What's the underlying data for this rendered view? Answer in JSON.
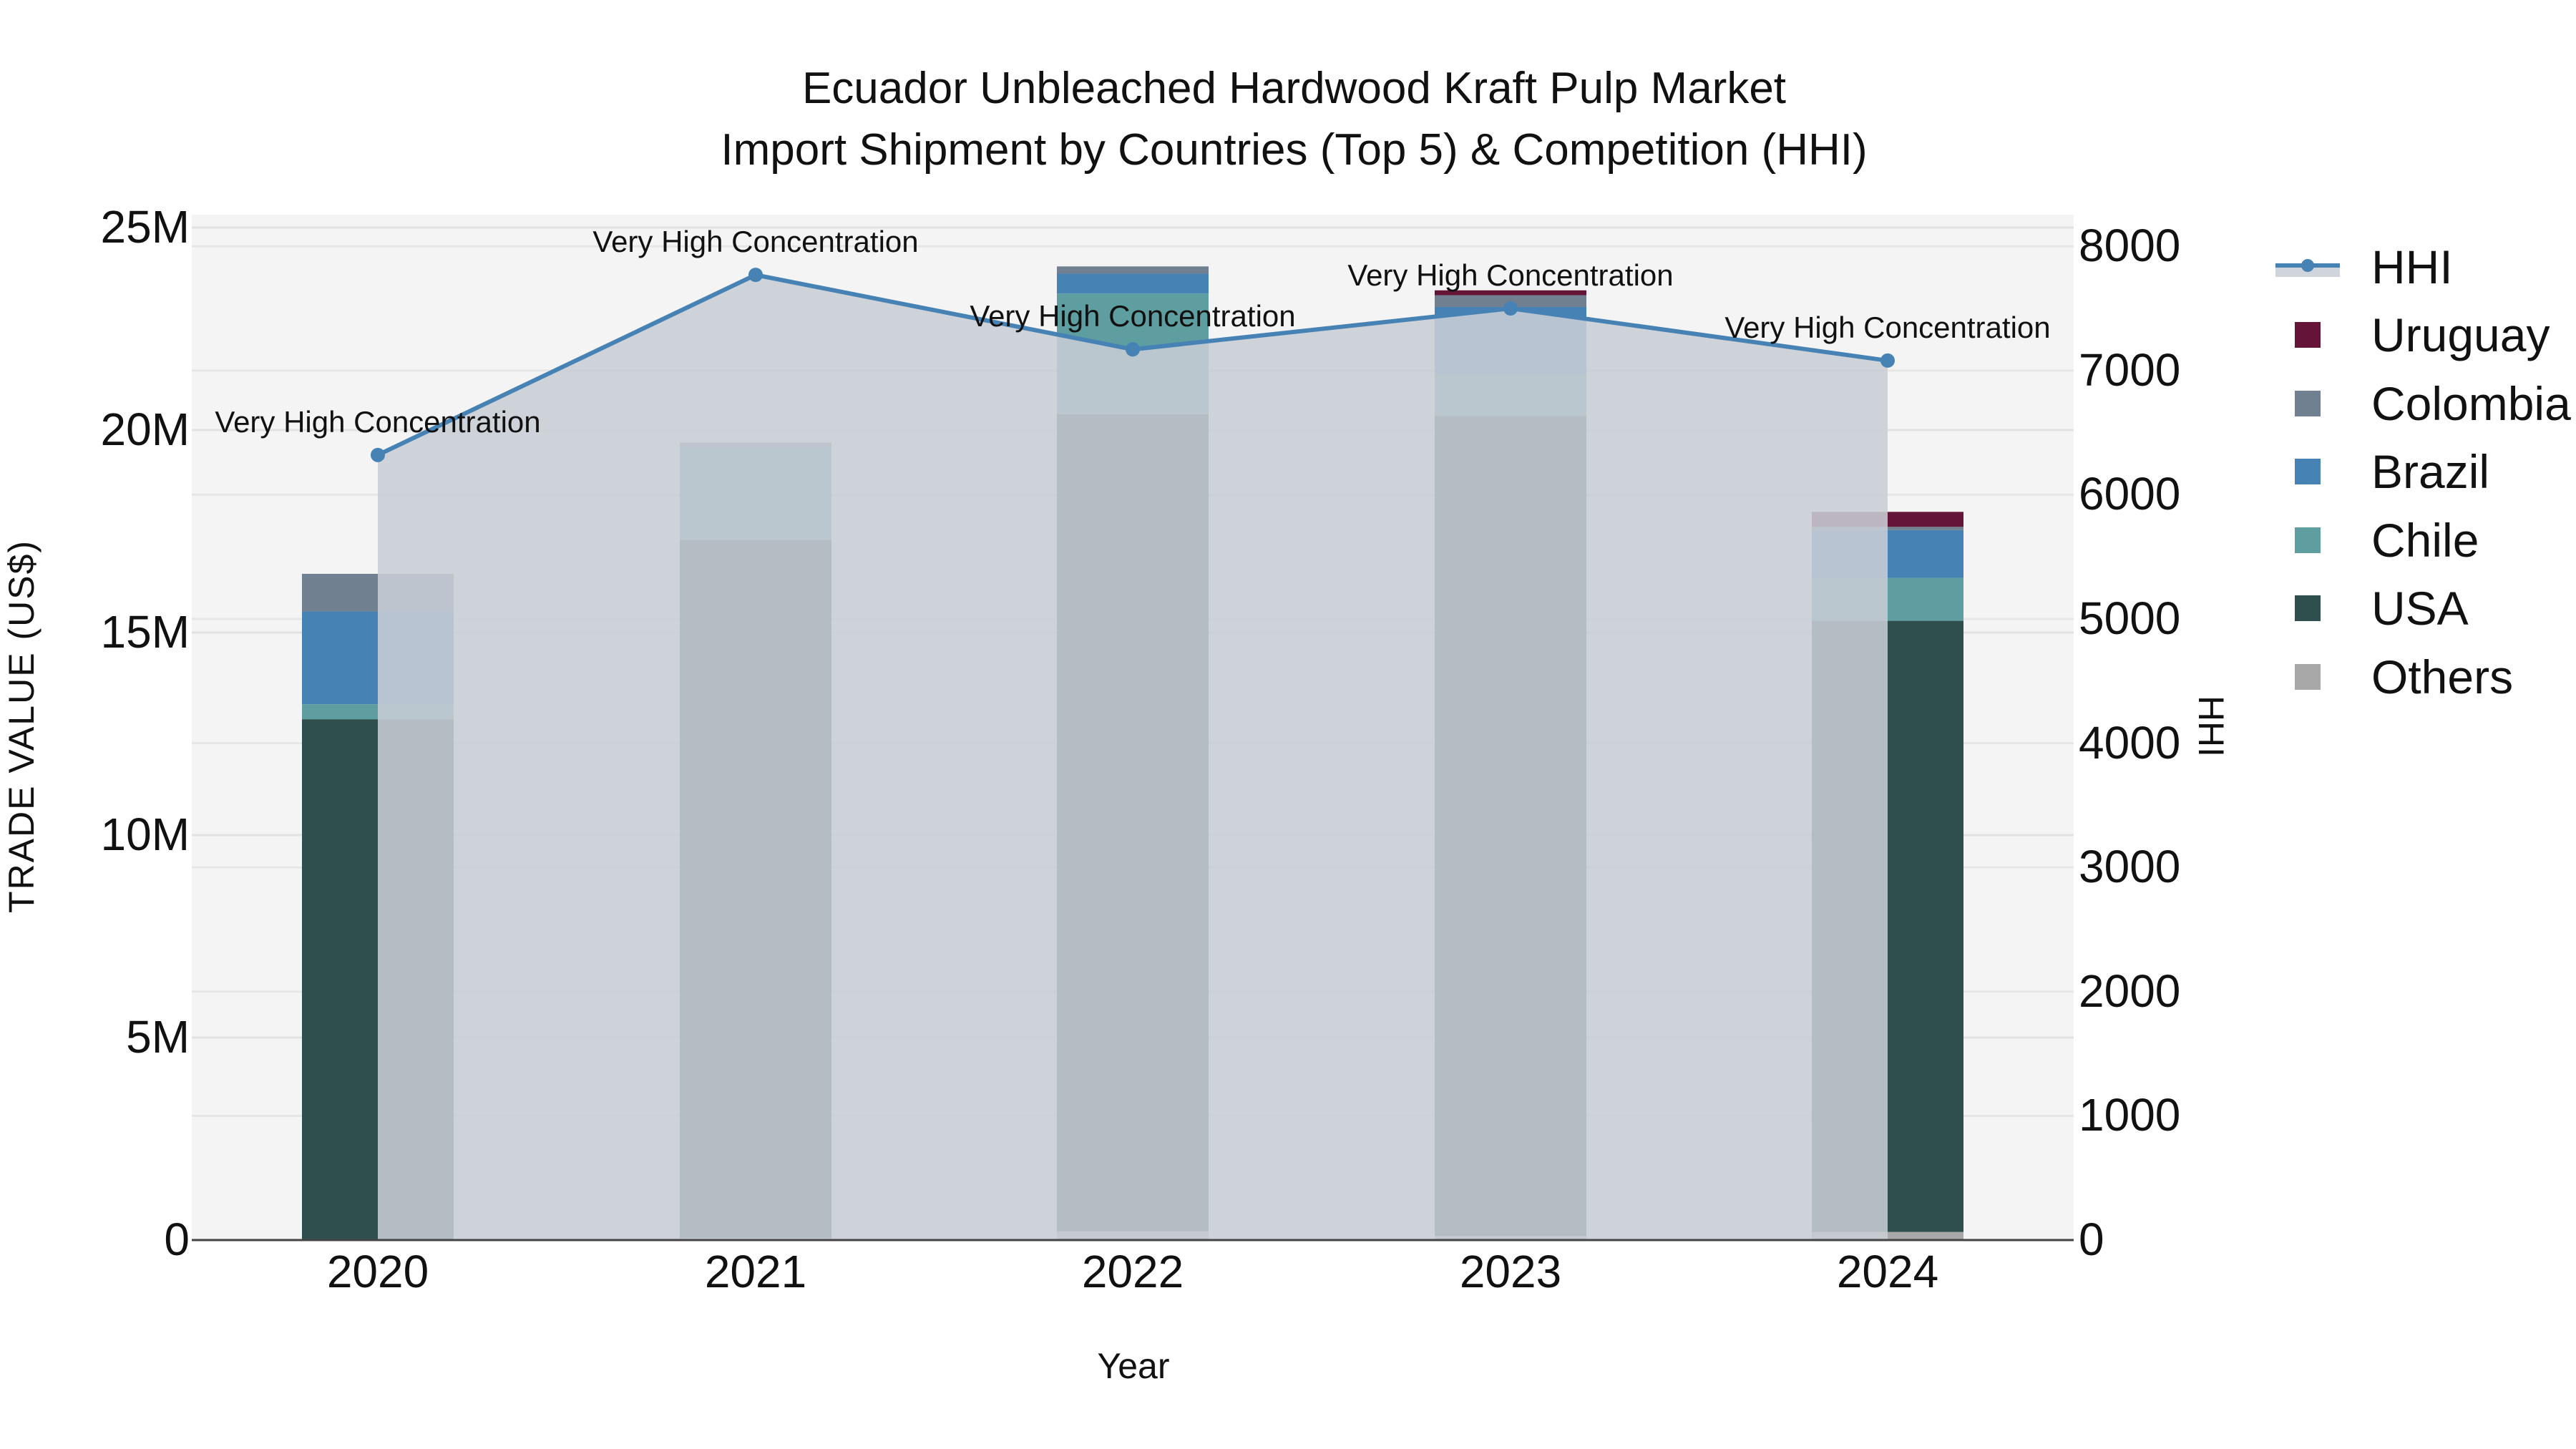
{
  "chart_data": {
    "type": "bar",
    "stacked": true,
    "title": "Ecuador Unbleached Hardwood Kraft Pulp Market",
    "subtitle": "Import Shipment by Countries (Top 5) & Competition (HHI)",
    "xlabel": "Year",
    "ylabel": "TRADE VALUE (US$)",
    "y2label": "HHI",
    "categories": [
      "2020",
      "2021",
      "2022",
      "2023",
      "2024"
    ],
    "ylim": [
      0,
      25500000
    ],
    "y2lim": [
      0,
      8240
    ],
    "yticks": [
      "0",
      "5M",
      "10M",
      "15M",
      "20M",
      "25M"
    ],
    "y2ticks": [
      "0",
      "1000",
      "2000",
      "3000",
      "4000",
      "5000",
      "6000",
      "7000",
      "8000"
    ],
    "grid": true,
    "legend_position": "right",
    "series": [
      {
        "name": "Others",
        "color": "#a8a8a8",
        "values": [
          20000,
          50000,
          220000,
          100000,
          200000
        ]
      },
      {
        "name": "USA",
        "color": "#2f4f4f",
        "values": [
          12840000,
          17240000,
          20170000,
          20250000,
          15090000
        ]
      },
      {
        "name": "Chile",
        "color": "#5f9ea0",
        "values": [
          370000,
          2280000,
          2980000,
          1020000,
          1060000
        ]
      },
      {
        "name": "Brazil",
        "color": "#4682b4",
        "values": [
          2290000,
          0,
          490000,
          1670000,
          1180000
        ]
      },
      {
        "name": "Colombia",
        "color": "#708090",
        "values": [
          930000,
          120000,
          180000,
          290000,
          80000
        ]
      },
      {
        "name": "Uruguay",
        "color": "#641436",
        "values": [
          0,
          0,
          0,
          120000,
          370000
        ]
      }
    ],
    "line_series": {
      "name": "HHI",
      "axis": "right",
      "color": "#4682b4",
      "fill_color": "#c8cdd5",
      "values": [
        6320,
        7770,
        7170,
        7500,
        7080
      ],
      "annotations": [
        "Very High Concentration",
        "Very High Concentration",
        "Very High Concentration",
        "Very High Concentration",
        "Very High Concentration"
      ]
    }
  },
  "legend": {
    "items": [
      {
        "label": "HHI",
        "kind": "line",
        "color": "#4682b4"
      },
      {
        "label": "Uruguay",
        "kind": "box",
        "color": "#641436"
      },
      {
        "label": "Colombia",
        "kind": "box",
        "color": "#708090"
      },
      {
        "label": "Brazil",
        "kind": "box",
        "color": "#4682b4"
      },
      {
        "label": "Chile",
        "kind": "box",
        "color": "#5f9ea0"
      },
      {
        "label": "USA",
        "kind": "box",
        "color": "#2f4f4f"
      },
      {
        "label": "Others",
        "kind": "box",
        "color": "#a8a8a8"
      }
    ]
  }
}
